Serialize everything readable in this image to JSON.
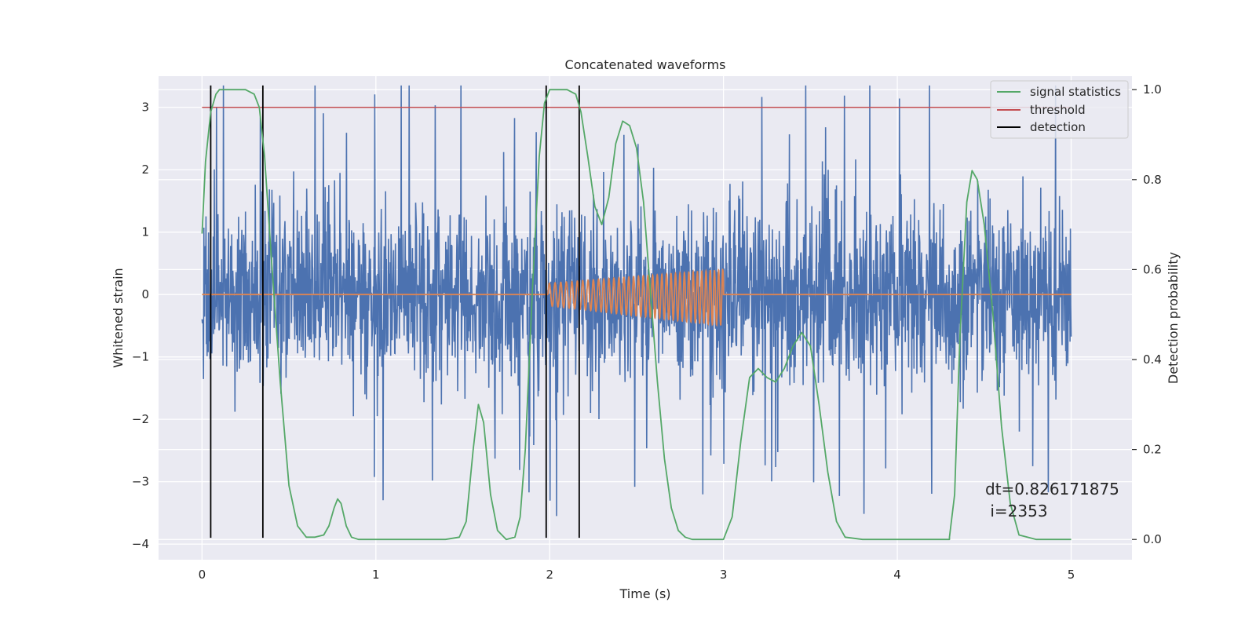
{
  "chart_data": {
    "type": "line",
    "title": "Concatenated waveforms",
    "xlabel": "Time (s)",
    "ylabel": "Whitened strain",
    "y2label": "Detection probability",
    "xlim": [
      -0.25,
      5.35
    ],
    "ylim": [
      -4.25,
      3.5
    ],
    "y2lim": [
      -0.045,
      1.03
    ],
    "x_ticks": [
      0,
      1,
      2,
      3,
      4,
      5
    ],
    "y_ticks": [
      -4,
      -3,
      -2,
      -1,
      0,
      1,
      2,
      3
    ],
    "y2_ticks": [
      0.0,
      0.2,
      0.4,
      0.6,
      0.8,
      1.0
    ],
    "grid": true,
    "legend_position": "top-right",
    "colors": {
      "strain": "#4c72b0",
      "waveform": "#dd8452",
      "signal_statistics": "#55a868",
      "threshold": "#c44e52",
      "detection": "#000000",
      "background": "#eaeaf2"
    },
    "series": [
      {
        "name": "",
        "kind": "noisy_strain",
        "x_range": [
          0,
          5
        ],
        "typical_range": [
          -1.5,
          1.5
        ],
        "extreme_range": [
          -3.9,
          3.35
        ]
      },
      {
        "name": "",
        "kind": "injected_waveform",
        "x_range": [
          1.99,
          3.0
        ],
        "amplitude_start": 0.18,
        "amplitude_end": 0.45
      },
      {
        "name": "signal statistics",
        "axis": "right",
        "x": [
          0.0,
          0.02,
          0.05,
          0.08,
          0.1,
          0.15,
          0.2,
          0.25,
          0.3,
          0.33,
          0.36,
          0.4,
          0.45,
          0.5,
          0.55,
          0.6,
          0.65,
          0.7,
          0.73,
          0.76,
          0.78,
          0.8,
          0.83,
          0.86,
          0.9,
          1.0,
          1.2,
          1.4,
          1.48,
          1.52,
          1.56,
          1.59,
          1.62,
          1.66,
          1.7,
          1.75,
          1.8,
          1.83,
          1.86,
          1.9,
          1.94,
          1.97,
          2.0,
          2.05,
          2.1,
          2.15,
          2.18,
          2.22,
          2.26,
          2.3,
          2.34,
          2.38,
          2.42,
          2.46,
          2.5,
          2.54,
          2.58,
          2.62,
          2.66,
          2.7,
          2.74,
          2.78,
          2.82,
          2.86,
          2.9,
          3.0,
          3.05,
          3.1,
          3.15,
          3.2,
          3.25,
          3.3,
          3.35,
          3.4,
          3.45,
          3.5,
          3.55,
          3.6,
          3.65,
          3.7,
          3.8,
          4.0,
          4.2,
          4.3,
          4.3,
          4.33,
          4.36,
          4.4,
          4.43,
          4.46,
          4.5,
          4.55,
          4.6,
          4.65,
          4.7,
          4.8,
          4.9,
          5.0
        ],
        "values": [
          0.68,
          0.84,
          0.95,
          0.99,
          1.0,
          1.0,
          1.0,
          1.0,
          0.99,
          0.96,
          0.85,
          0.62,
          0.35,
          0.12,
          0.03,
          0.005,
          0.005,
          0.01,
          0.03,
          0.07,
          0.09,
          0.08,
          0.03,
          0.005,
          0.0,
          0.0,
          0.0,
          0.0,
          0.005,
          0.04,
          0.2,
          0.3,
          0.26,
          0.1,
          0.02,
          0.0,
          0.005,
          0.05,
          0.2,
          0.55,
          0.85,
          0.97,
          1.0,
          1.0,
          1.0,
          0.99,
          0.95,
          0.85,
          0.74,
          0.7,
          0.76,
          0.88,
          0.93,
          0.92,
          0.87,
          0.75,
          0.55,
          0.35,
          0.18,
          0.07,
          0.02,
          0.005,
          0.0,
          0.0,
          0.0,
          0.0,
          0.05,
          0.22,
          0.36,
          0.38,
          0.36,
          0.35,
          0.38,
          0.43,
          0.46,
          0.43,
          0.3,
          0.15,
          0.04,
          0.005,
          0.0,
          0.0,
          0.0,
          0.0,
          0.005,
          0.1,
          0.45,
          0.75,
          0.82,
          0.8,
          0.7,
          0.5,
          0.25,
          0.08,
          0.01,
          0.0,
          0.0,
          0.0
        ]
      },
      {
        "name": "threshold",
        "x": [
          0,
          5
        ],
        "values": [
          3.0,
          3.0
        ]
      },
      {
        "name": "detection",
        "x": [
          0.05,
          0.35,
          1.98,
          2.17
        ],
        "y_range": [
          -3.9,
          3.35
        ]
      }
    ],
    "annotation": {
      "lines": [
        "dt=0.826171875",
        " i=2353"
      ]
    }
  }
}
